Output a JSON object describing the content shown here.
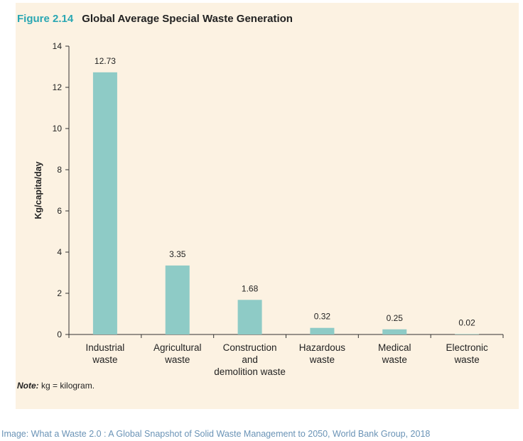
{
  "figure": {
    "label": "Figure 2.14",
    "title": "Global Average Special Waste Generation",
    "note_prefix": "Note:",
    "note_text": " kg = kilogram."
  },
  "caption": "Image: What a Waste 2.0 : A Global Snapshot of Solid Waste Management to 2050, World Bank Group, 2018",
  "colors": {
    "bar": "#8ecbc6",
    "panel": "#fcf2e2",
    "accent": "#2aa7b3"
  },
  "chart_data": {
    "type": "bar",
    "categories": [
      [
        "Industrial",
        "waste"
      ],
      [
        "Agricultural",
        "waste"
      ],
      [
        "Construction",
        "and",
        "demolition waste"
      ],
      [
        "Hazardous",
        "waste"
      ],
      [
        "Medical",
        "waste"
      ],
      [
        "Electronic",
        "waste"
      ]
    ],
    "values": [
      12.73,
      3.35,
      1.68,
      0.32,
      0.25,
      0.02
    ],
    "value_labels": [
      "12.73",
      "3.35",
      "1.68",
      "0.32",
      "0.25",
      "0.02"
    ],
    "ylabel": "Kg/capita/day",
    "xlabel": "",
    "ylim": [
      0,
      14
    ],
    "yticks": [
      0,
      2,
      4,
      6,
      8,
      10,
      12,
      14
    ],
    "grid": false,
    "legend": "none"
  }
}
